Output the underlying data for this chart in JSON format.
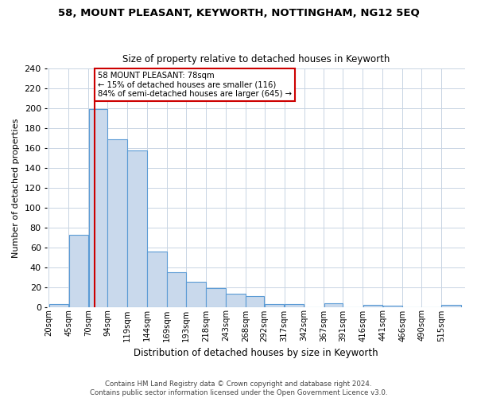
{
  "title": "58, MOUNT PLEASANT, KEYWORTH, NOTTINGHAM, NG12 5EQ",
  "subtitle": "Size of property relative to detached houses in Keyworth",
  "xlabel": "Distribution of detached houses by size in Keyworth",
  "ylabel": "Number of detached properties",
  "footer": "Contains HM Land Registry data © Crown copyright and database right 2024.\nContains public sector information licensed under the Open Government Licence v3.0.",
  "bin_labels": [
    "20sqm",
    "45sqm",
    "70sqm",
    "94sqm",
    "119sqm",
    "144sqm",
    "169sqm",
    "193sqm",
    "218sqm",
    "243sqm",
    "268sqm",
    "292sqm",
    "317sqm",
    "342sqm",
    "367sqm",
    "391sqm",
    "416sqm",
    "441sqm",
    "466sqm",
    "490sqm",
    "515sqm"
  ],
  "bar_values": [
    3,
    73,
    199,
    169,
    158,
    56,
    35,
    25,
    19,
    13,
    11,
    3,
    3,
    0,
    4,
    0,
    2,
    1,
    0,
    0,
    2
  ],
  "bar_color": "#c9d9ec",
  "bar_edge_color": "#5b9bd5",
  "property_line_x": 78,
  "property_line_label": "58 MOUNT PLEASANT: 78sqm",
  "annotation_line1": "← 15% of detached houses are smaller (116)",
  "annotation_line2": "84% of semi-detached houses are larger (645) →",
  "annotation_box_color": "#ffffff",
  "annotation_box_edge": "#cc0000",
  "red_line_color": "#cc0000",
  "background_color": "#ffffff",
  "grid_color": "#c8d4e3",
  "ylim": [
    0,
    240
  ],
  "yticks": [
    0,
    20,
    40,
    60,
    80,
    100,
    120,
    140,
    160,
    180,
    200,
    220,
    240
  ]
}
